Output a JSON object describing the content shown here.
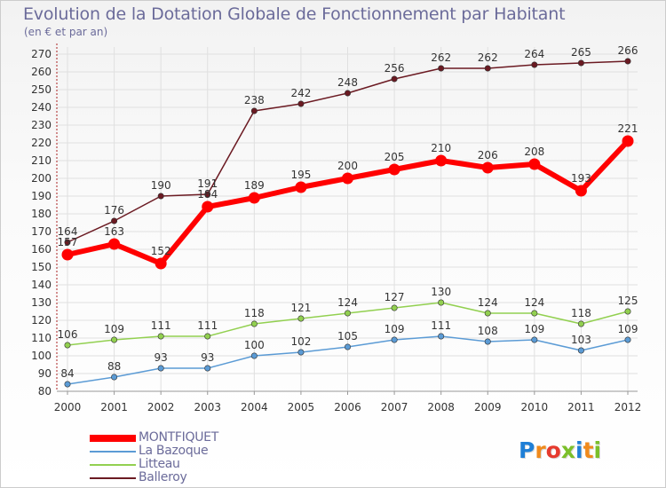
{
  "header": {
    "title": "Evolution de la Dotation Globale de Fonctionnement par Habitant",
    "subtitle": "(en € et par an)"
  },
  "logo": {
    "text": "Proxiti"
  },
  "colors": {
    "MONTFIQUET": "#ff0000",
    "La Bazoque": "#5b9bd5",
    "Litteau": "#92d050",
    "Balleroy": "#6b1a22",
    "axis": "#aa2222",
    "grid": "#e0e0e0"
  },
  "chart_data": {
    "type": "line",
    "title": "Evolution de la Dotation Globale de Fonctionnement par Habitant",
    "subtitle": "(en € et par an)",
    "xlabel": "",
    "ylabel": "",
    "ylim": [
      80,
      270
    ],
    "yticks": [
      80,
      90,
      100,
      110,
      120,
      130,
      140,
      150,
      160,
      170,
      180,
      190,
      200,
      210,
      220,
      230,
      240,
      250,
      260,
      270
    ],
    "x": [
      "2000",
      "2001",
      "2002",
      "2003",
      "2004",
      "2005",
      "2006",
      "2007",
      "2008",
      "2009",
      "2010",
      "2011",
      "2012"
    ],
    "grid": true,
    "legend_position": "bottom-left",
    "series": [
      {
        "name": "MONTFIQUET",
        "values": [
          157,
          163,
          152,
          184,
          189,
          195,
          200,
          205,
          210,
          206,
          208,
          193,
          221
        ]
      },
      {
        "name": "La Bazoque",
        "values": [
          84,
          88,
          93,
          93,
          100,
          102,
          105,
          109,
          111,
          108,
          109,
          103,
          109
        ]
      },
      {
        "name": "Litteau",
        "values": [
          106,
          109,
          111,
          111,
          118,
          121,
          124,
          127,
          130,
          124,
          124,
          118,
          125
        ]
      },
      {
        "name": "Balleroy",
        "values": [
          164,
          176,
          190,
          191,
          238,
          242,
          248,
          256,
          262,
          262,
          264,
          265,
          266
        ]
      }
    ]
  }
}
